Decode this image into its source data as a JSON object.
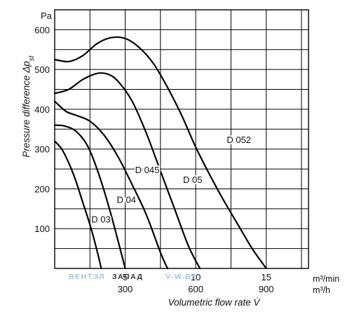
{
  "chart_data": {
    "type": "line",
    "ylabel_unit": "Pa",
    "ylabel": "Pressure difference Δp",
    "ylabel_sub": "st",
    "xlabel": "Volumetric flow rate V̇",
    "x_units": [
      "m³/min",
      "m³/h"
    ],
    "xlim": [
      0,
      18
    ],
    "ylim": [
      0,
      650
    ],
    "grid": true,
    "y_ticks": [
      100,
      200,
      300,
      400,
      500,
      600
    ],
    "x_ticks_min": [
      {
        "value": 5,
        "label": "5"
      },
      {
        "value": 10,
        "label": "10"
      },
      {
        "value": 15,
        "label": "15"
      }
    ],
    "x_ticks_h": [
      {
        "value": 5,
        "label": "300"
      },
      {
        "value": 10,
        "label": "600"
      },
      {
        "value": 15,
        "label": "900"
      }
    ],
    "series": [
      {
        "name": "D 03",
        "x": [
          0,
          0.5,
          1,
          1.5,
          2,
          2.5,
          3,
          3.3
        ],
        "y": [
          320,
          300,
          265,
          220,
          165,
          110,
          45,
          0
        ]
      },
      {
        "name": "D 04",
        "x": [
          0,
          0.7,
          1.5,
          2.3,
          3,
          3.8,
          4.6,
          5
        ],
        "y": [
          360,
          358,
          345,
          310,
          250,
          160,
          55,
          0
        ]
      },
      {
        "name": "D 045",
        "x": [
          0,
          0.8,
          1.5,
          2.5,
          3.5,
          4.5,
          5.5,
          6.5,
          7.5,
          8
        ],
        "y": [
          420,
          395,
          385,
          370,
          335,
          280,
          210,
          135,
          40,
          0
        ]
      },
      {
        "name": "D 05",
        "x": [
          0,
          1,
          2,
          3,
          3.8,
          4.5,
          5.5,
          6.5,
          7.5,
          8.5,
          9.5,
          10.3
        ],
        "y": [
          440,
          450,
          475,
          490,
          488,
          470,
          420,
          340,
          245,
          150,
          55,
          0
        ]
      },
      {
        "name": "D 052",
        "x": [
          0,
          1,
          2,
          3,
          4,
          5,
          6,
          7,
          8,
          9,
          10,
          11,
          12,
          13,
          14,
          15
        ],
        "y": [
          525,
          520,
          535,
          565,
          580,
          578,
          555,
          515,
          455,
          385,
          305,
          235,
          170,
          110,
          50,
          0
        ]
      }
    ],
    "curve_labels": [
      "D 03",
      "D 04",
      "D 045",
      "D 05",
      "D 052"
    ]
  },
  "watermark": {
    "left": "ВЕНТЭЛ",
    "middle": "ЗАПАД",
    "right": "V-W.BY"
  }
}
